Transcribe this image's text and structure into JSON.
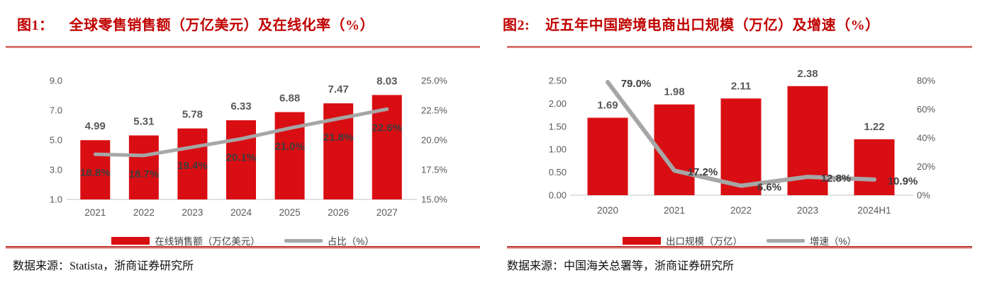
{
  "colors": {
    "title_red": "#c00000",
    "bar_red": "#d90e13",
    "line_gray": "#a6a6a6",
    "rule_red": "#bc3430"
  },
  "figures": [
    {
      "label": "图1：",
      "title": "全球零售销售额（万亿美元）及在线化率（%）",
      "source": "数据来源：Statista，浙商证券研究所"
    },
    {
      "label": "图2:",
      "title": "近五年中国跨境电商出口规模（万亿）及增速（%）",
      "source": "数据来源：中国海关总署等，浙商证券研究所"
    }
  ],
  "chart_data": [
    {
      "type": "bar",
      "combo": "bar+line",
      "title": "全球零售销售额（万亿美元）及在线化率（%）",
      "categories": [
        "2021",
        "2022",
        "2023",
        "2024",
        "2025",
        "2026",
        "2027"
      ],
      "series": [
        {
          "name": "在线销售额（万亿美元）",
          "type": "bar",
          "axis": "left",
          "color": "#d90e13",
          "values": [
            4.99,
            5.31,
            5.78,
            6.33,
            6.88,
            7.47,
            8.03
          ],
          "labels": [
            "4.99",
            "5.31",
            "5.78",
            "6.33",
            "6.88",
            "7.47",
            "8.03"
          ]
        },
        {
          "name": "占比（%）",
          "type": "line",
          "axis": "right",
          "color": "#a6a6a6",
          "values": [
            18.8,
            18.7,
            19.4,
            20.1,
            21.0,
            21.8,
            22.6
          ],
          "labels": [
            "18.8%",
            "18.7%",
            "19.4%",
            "20.1%",
            "21.0%",
            "21.8%",
            "22.6%"
          ]
        }
      ],
      "left_axis": {
        "min": 1.0,
        "max": 9.0,
        "tick_labels": [
          "9.0",
          "7.0",
          "5.0",
          "3.0",
          "1.0"
        ],
        "tick_values": [
          9,
          7,
          5,
          3,
          1
        ]
      },
      "right_axis": {
        "min": 15.0,
        "max": 25.0,
        "tick_labels": [
          "25.0%",
          "22.5%",
          "20.0%",
          "17.5%",
          "15.0%"
        ],
        "tick_values": [
          25,
          22.5,
          20,
          17.5,
          15
        ]
      },
      "grid": false,
      "legend_position": "bottom"
    },
    {
      "type": "bar",
      "combo": "bar+line",
      "title": "近五年中国跨境电商出口规模（万亿）及增速（%）",
      "categories": [
        "2020",
        "2021",
        "2022",
        "2023",
        "2024H1"
      ],
      "series": [
        {
          "name": "出口规模（万亿）",
          "type": "bar",
          "axis": "left",
          "color": "#d90e13",
          "values": [
            1.69,
            1.98,
            2.11,
            2.38,
            1.22
          ],
          "labels": [
            "1.69",
            "1.98",
            "2.11",
            "2.38",
            "1.22"
          ]
        },
        {
          "name": "增速（%）",
          "type": "line",
          "axis": "right",
          "color": "#a6a6a6",
          "values": [
            79.0,
            17.2,
            6.6,
            12.8,
            10.9
          ],
          "labels": [
            "79.0%",
            "17.2%",
            "6.6%",
            "12.8%",
            "10.9%"
          ]
        }
      ],
      "left_axis": {
        "min": 0.0,
        "max": 2.5,
        "tick_labels": [
          "2.50",
          "2.00",
          "1.50",
          "1.00",
          "0.50",
          "0.00"
        ],
        "tick_values": [
          2.5,
          2.0,
          1.5,
          1.0,
          0.5,
          0.0
        ]
      },
      "right_axis": {
        "min": 0,
        "max": 80,
        "tick_labels": [
          "80%",
          "60%",
          "40%",
          "20%",
          "0%"
        ],
        "tick_values": [
          80,
          60,
          40,
          20,
          0
        ]
      },
      "grid": false,
      "legend_position": "bottom"
    }
  ]
}
